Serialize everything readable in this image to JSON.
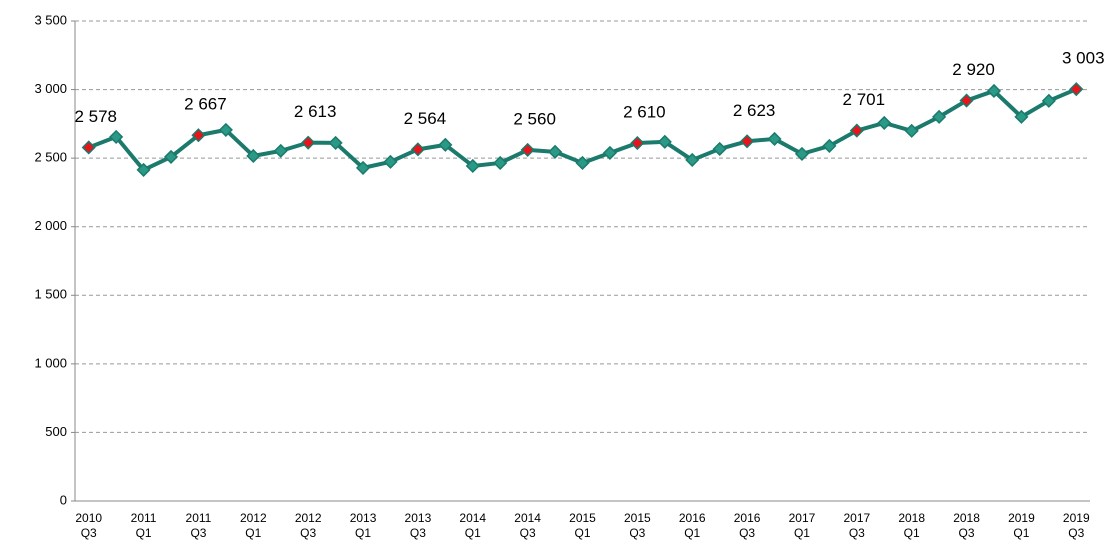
{
  "chart_data": {
    "type": "line",
    "categories": [
      [
        "2010",
        "Q3"
      ],
      null,
      [
        "2011",
        "Q1"
      ],
      null,
      [
        "2011",
        "Q3"
      ],
      null,
      [
        "2012",
        "Q1"
      ],
      null,
      [
        "2012",
        "Q3"
      ],
      null,
      [
        "2013",
        "Q1"
      ],
      null,
      [
        "2013",
        "Q3"
      ],
      null,
      [
        "2014",
        "Q1"
      ],
      null,
      [
        "2014",
        "Q3"
      ],
      null,
      [
        "2015",
        "Q1"
      ],
      null,
      [
        "2015",
        "Q3"
      ],
      null,
      [
        "2016",
        "Q1"
      ],
      null,
      [
        "2016",
        "Q3"
      ],
      null,
      [
        "2017",
        "Q1"
      ],
      null,
      [
        "2017",
        "Q3"
      ],
      null,
      [
        "2018",
        "Q1"
      ],
      null,
      [
        "2018",
        "Q3"
      ],
      null,
      [
        "2019",
        "Q1"
      ],
      null,
      [
        "2019",
        "Q3"
      ]
    ],
    "series": [
      {
        "color": "#1b7a6c",
        "marker_color": "#2a9a87",
        "highlight_color": "#e8131b",
        "values": [
          2578,
          2655,
          2414,
          2509,
          2667,
          2706,
          2516,
          2553,
          2613,
          2611,
          2429,
          2473,
          2564,
          2597,
          2443,
          2465,
          2560,
          2546,
          2465,
          2538,
          2610,
          2619,
          2487,
          2567,
          2623,
          2640,
          2531,
          2589,
          2701,
          2757,
          2699,
          2801,
          2920,
          2990,
          2801,
          2918,
          3003
        ],
        "value_labels": [
          "2 578",
          null,
          null,
          null,
          "2 667",
          null,
          null,
          null,
          "2 613",
          null,
          null,
          null,
          "2 564",
          null,
          null,
          null,
          "2 560",
          null,
          null,
          null,
          "2 610",
          null,
          null,
          null,
          "2 623",
          null,
          null,
          null,
          "2 701",
          null,
          null,
          null,
          "2 920",
          null,
          null,
          null,
          "3 003"
        ]
      }
    ],
    "ylim": [
      0,
      3500
    ],
    "yticks": [
      0,
      500,
      {
        "value": 1000,
        "label": "1 000"
      },
      {
        "value": 1500,
        "label": "1 500"
      },
      {
        "value": 2000,
        "label": "2 000"
      },
      {
        "value": 2500,
        "label": "2 500"
      },
      {
        "value": 3000,
        "label": "3 000"
      },
      {
        "value": 3500,
        "label": "3 500"
      }
    ],
    "grid": true
  }
}
